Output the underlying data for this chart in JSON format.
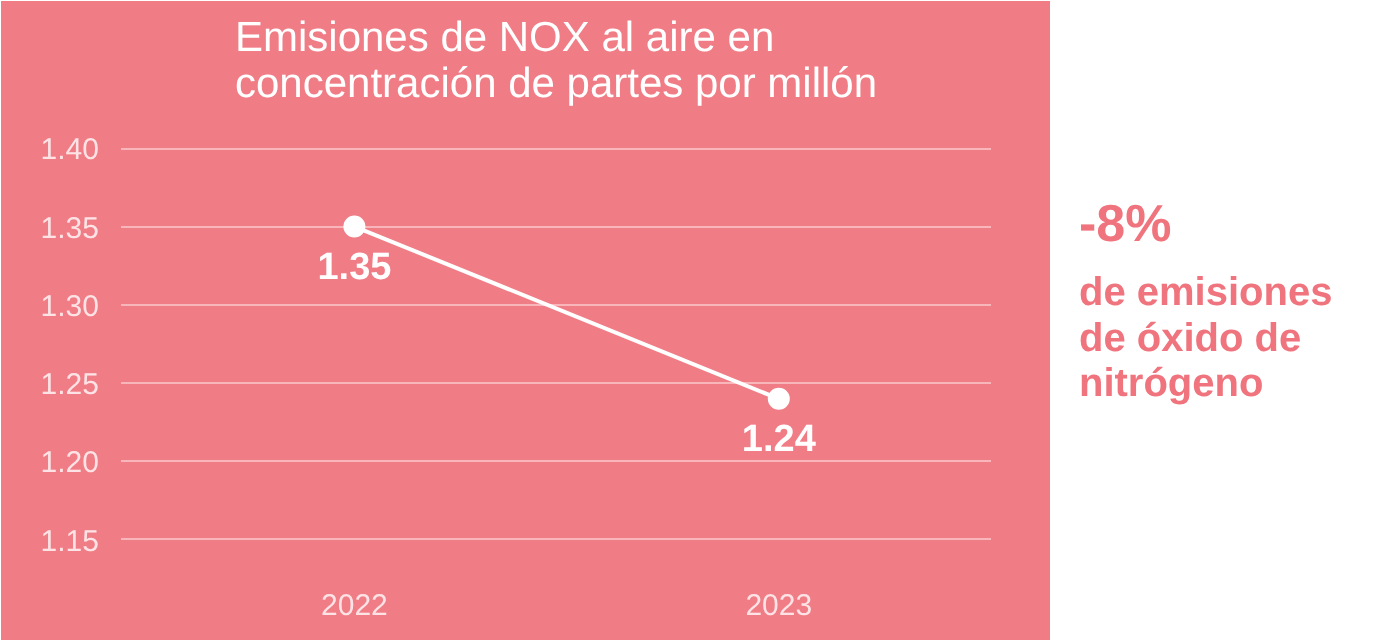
{
  "chart_data": {
    "type": "line",
    "title": "Emisiones de NOX al aire en concentración de partes por millón",
    "categories": [
      "2022",
      "2023"
    ],
    "series": [
      {
        "color": "#ffffff",
        "values": [
          1.35,
          1.24
        ]
      }
    ],
    "ylim": [
      1.13,
      1.42
    ],
    "yticks": [
      1.15,
      {
        "value": 1.2,
        "label": "1.20"
      },
      1.25,
      {
        "value": 1.3,
        "label": "1.30"
      },
      1.35,
      {
        "value": 1.4,
        "label": "1.40"
      }
    ],
    "grid": "y",
    "marker": "circle",
    "line_style": "solid",
    "data_labels": true,
    "annotations": [
      "-8%",
      "de emisiones de óxido de nitrógeno"
    ]
  }
}
